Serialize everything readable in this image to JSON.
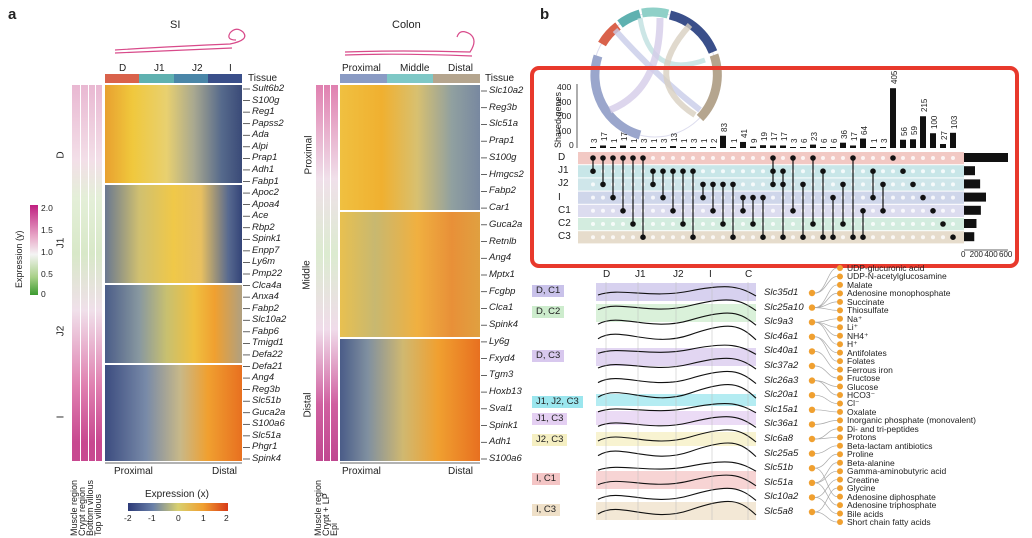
{
  "panel_a": {
    "letter": "a",
    "si_title": "SI",
    "colon_title": "Colon",
    "si_segments": [
      "D",
      "J1",
      "J2",
      "I"
    ],
    "si_segment_colors": [
      "#d9624b",
      "#5fb1b0",
      "#4a86a8",
      "#3a4f8a"
    ],
    "colon_segments": [
      "Proximal",
      "Middle",
      "Distal"
    ],
    "colon_segment_colors": [
      "#8a9bc4",
      "#7ec8c6",
      "#b5a58e"
    ],
    "tissue_label": "Tissue",
    "si_row_groups": [
      "D",
      "J1",
      "J2",
      "I"
    ],
    "colon_row_groups": [
      "Proximal",
      "Middle",
      "Distal"
    ],
    "si_genes": [
      "Sult6b2",
      "S100g",
      "Reg1",
      "Papss2",
      "Ada",
      "Alpi",
      "Prap1",
      "Adh1",
      "Fabp1",
      "Apoc2",
      "Apoa4",
      "Ace",
      "Rbp2",
      "Spink1",
      "Enpp7",
      "Ly6m",
      "Pmp22",
      "Clca4a",
      "Anxa4",
      "Fabp2",
      "Slc10a2",
      "Fabp6",
      "Tmigd1",
      "Defa22",
      "Defa21",
      "Ang4",
      "Reg3b",
      "Slc51b",
      "Guca2a",
      "S100a6",
      "Slc51a",
      "Phgr1",
      "Spink4"
    ],
    "colon_genes": [
      "Slc10a2",
      "Reg3b",
      "Slc51a",
      "Prap1",
      "S100g",
      "Hmgcs2",
      "Fabp2",
      "Car1",
      "Guca2a",
      "Retnlb",
      "Ang4",
      "Mptx1",
      "Fcgbp",
      "Clca1",
      "Spink4",
      "Ly6g",
      "Fxyd4",
      "Tgm3",
      "Hoxb13",
      "Sval1",
      "Spink1",
      "Adh1",
      "S100a6"
    ],
    "si_axis": [
      "Proximal",
      "Distal"
    ],
    "colon_axis": [
      "Proximal",
      "Distal"
    ],
    "si_annot_labels": [
      "Muscle region",
      "Crypt region",
      "Bottom villous",
      "Top villous"
    ],
    "colon_annot_labels": [
      "Muscle region",
      "Crypt + LP",
      "Epi"
    ],
    "legend_y": {
      "title": "Expression (y)",
      "ticks": [
        "2.0",
        "1.5",
        "1.0",
        "0.5",
        "0"
      ]
    },
    "legend_x": {
      "title": "Expression (x)",
      "ticks": [
        "-2",
        "-1",
        "0",
        "1",
        "2"
      ]
    }
  },
  "panel_b": {
    "letter": "b",
    "ylabel": "Shared genes",
    "yticks": [
      "400",
      "300",
      "200",
      "100",
      "0"
    ],
    "set_rows": [
      "D",
      "J1",
      "J2",
      "I",
      "C1",
      "C2",
      "C3"
    ],
    "row_colors": [
      "#f2c9c4",
      "#c8e6e8",
      "#cfe6ea",
      "#cfd6ea",
      "#dcdcef",
      "#d3ecdf",
      "#e6dccc"
    ],
    "bar_labels": [
      "3",
      "17",
      "1",
      "17",
      "1",
      "3",
      "1",
      "3",
      "13",
      "1",
      "3",
      "1",
      "2",
      "83",
      "1",
      "41",
      "9",
      "19",
      "17",
      "17",
      "3",
      "6",
      "23",
      "6",
      "6",
      "36",
      "17",
      "64",
      "1",
      "3",
      "405",
      "56",
      "59",
      "215",
      "100",
      "27",
      "103"
    ],
    "bar_values": [
      3,
      17,
      1,
      17,
      1,
      3,
      1,
      3,
      13,
      1,
      3,
      1,
      2,
      83,
      1,
      41,
      9,
      19,
      17,
      17,
      3,
      6,
      23,
      6,
      6,
      36,
      17,
      64,
      1,
      3,
      405,
      56,
      59,
      215,
      100,
      27,
      103
    ],
    "set_size_ticks": [
      "0",
      "200",
      "400",
      "600"
    ],
    "set_sizes": [
      600,
      150,
      220,
      300,
      230,
      170,
      140
    ]
  },
  "panel_c": {
    "columns": [
      "D",
      "J1",
      "J2",
      "I",
      "C"
    ],
    "groups": [
      "D, C1",
      "D, C2",
      "D, C3",
      "J1, J2, C3",
      "J1, C3",
      "J2, C3",
      "I, C1",
      "I, C3"
    ],
    "group_colors": [
      "#c9c2ea",
      "#cdeccd",
      "#d8c8ee",
      "#9be6ee",
      "#e4cff2",
      "#f5efc2",
      "#f4c5c5",
      "#efe0c8"
    ],
    "genes": [
      "Slc35d1",
      "Slc25a10",
      "Slc9a3",
      "Slc46a1",
      "Slc40a1",
      "Slc37a2",
      "Slc26a3",
      "Slc20a1",
      "Slc15a1",
      "Slc36a1",
      "Slc6a8",
      "Slc25a5",
      "Slc51b",
      "Slc51a",
      "Slc10a2",
      "Slc5a8"
    ],
    "substrates": [
      "UDP-glucuronic acid",
      "UDP-N-acetylglucosamine",
      "Malate",
      "Adenosine monophosphate",
      "Succinate",
      "Thiosulfate",
      "Na⁺",
      "Li⁺",
      "NH4⁺",
      "H⁺",
      "Antifolates",
      "Folates",
      "Ferrous iron",
      "Fructose",
      "Glucose",
      "HCO3⁻",
      "Cl⁻",
      "Oxalate",
      "Inorganic phosphate (monovalent)",
      "Di- and tri-peptides",
      "Protons",
      "Beta-lactam antibiotics",
      "Proline",
      "Beta-alanine",
      "Gamma-aminobutyric acid",
      "Creatine",
      "Glycine",
      "Adenosine diphosphate",
      "Adenosine triphosphate",
      "Bile acids",
      "Short chain fatty acids"
    ],
    "dot_color": "#f0a030"
  },
  "highlight_color": "#e8392c"
}
